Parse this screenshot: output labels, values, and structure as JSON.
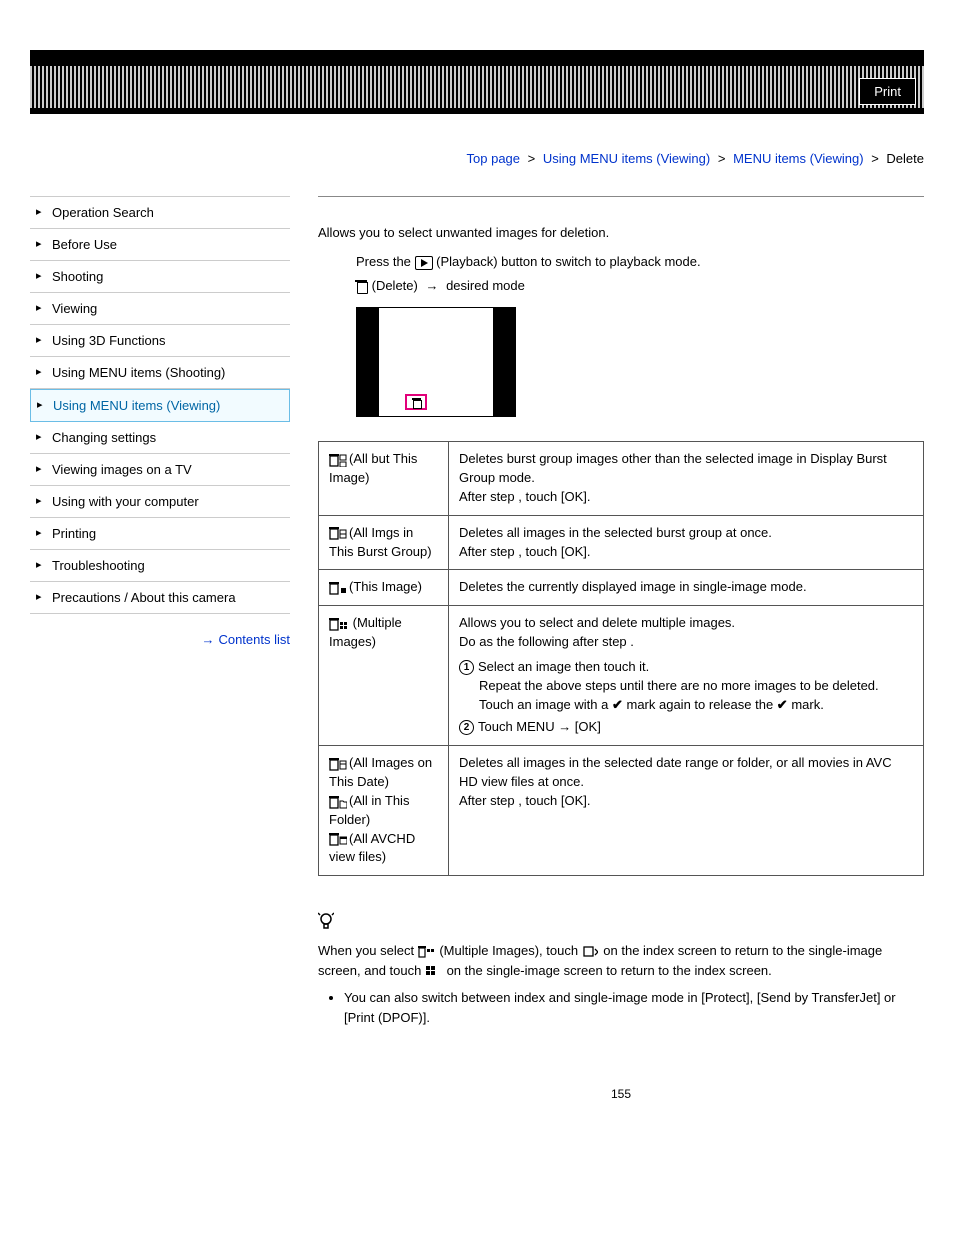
{
  "header": {
    "print_label": "Print"
  },
  "breadcrumb": {
    "items": [
      "Top page",
      "Using MENU items (Viewing)",
      "MENU items (Viewing)"
    ],
    "current": "Delete"
  },
  "sidebar": {
    "items": [
      {
        "label": "Operation Search"
      },
      {
        "label": "Before Use"
      },
      {
        "label": "Shooting"
      },
      {
        "label": "Viewing"
      },
      {
        "label": "Using 3D Functions"
      },
      {
        "label": "Using MENU items (Shooting)"
      },
      {
        "label": "Using MENU items (Viewing)",
        "active": true
      },
      {
        "label": "Changing settings"
      },
      {
        "label": "Viewing images on a TV"
      },
      {
        "label": "Using with your computer"
      },
      {
        "label": "Printing"
      },
      {
        "label": "Troubleshooting"
      },
      {
        "label": "Precautions / About this camera"
      }
    ],
    "contents_link": "Contents list"
  },
  "content": {
    "intro": "Allows you to select unwanted images for deletion.",
    "step1_a": "Press the ",
    "step1_b": " (Playback) button to switch to playback mode.",
    "step2_a": " (Delete) ",
    "step2_b": " desired mode",
    "table": {
      "rows": [
        {
          "label": "(All but This Image)",
          "icon": "trash-burst-sel",
          "desc_lines": [
            "Deletes burst group images other than the selected image in Display Burst Group mode.",
            "After step   , touch [OK]."
          ]
        },
        {
          "label": "(All Imgs in This Burst Group)",
          "icon": "trash-burst",
          "desc_lines": [
            "Deletes all images in the selected burst group at once.",
            "After step   , touch [OK]."
          ]
        },
        {
          "label": "(This Image)",
          "icon": "trash-single",
          "desc_lines": [
            "Deletes the currently displayed image in single-image mode."
          ]
        },
        {
          "label": " (Multiple Images)",
          "icon": "trash-multi",
          "desc_lines": [
            "Allows you to select and delete multiple images.",
            "Do as the following after step   ."
          ],
          "numbered": [
            {
              "n": "1",
              "text_a": "Select an image then touch it.",
              "text_b": "Repeat the above steps until there are no more images to be deleted.",
              "text_c_a": "Touch an image with a ",
              "text_c_b": " mark again to release the ",
              "text_c_c": " mark."
            },
            {
              "n": "2",
              "text": "Touch MENU → [OK]"
            }
          ]
        },
        {
          "labels": [
            {
              "icon": "trash-date",
              "text": "(All Images on This Date)"
            },
            {
              "icon": "trash-folder",
              "text": "(All in This Folder)"
            },
            {
              "icon": "trash-avchd",
              "text": "(All AVCHD view files)"
            }
          ],
          "desc_lines": [
            "Deletes all images in the selected date range or folder, or all movies in AVC HD view files at once.",
            "After step   , touch [OK]."
          ]
        }
      ]
    },
    "tip": {
      "p1_a": "When you select ",
      "p1_b": " (Multiple Images), touch ",
      "p1_c": " on the index screen to return to the single-image screen, and touch ",
      "p1_d": " on the single-image screen to return to the index screen.",
      "bullet": "You can also switch between index and single-image mode in [Protect], [Send by TransferJet] or [Print (DPOF)]."
    }
  },
  "page_number": "155",
  "colors": {
    "link": "#0033cc",
    "active_bg": "#f2fbff",
    "active_border": "#6bbde6",
    "highlight_pink": "#e2007a"
  }
}
